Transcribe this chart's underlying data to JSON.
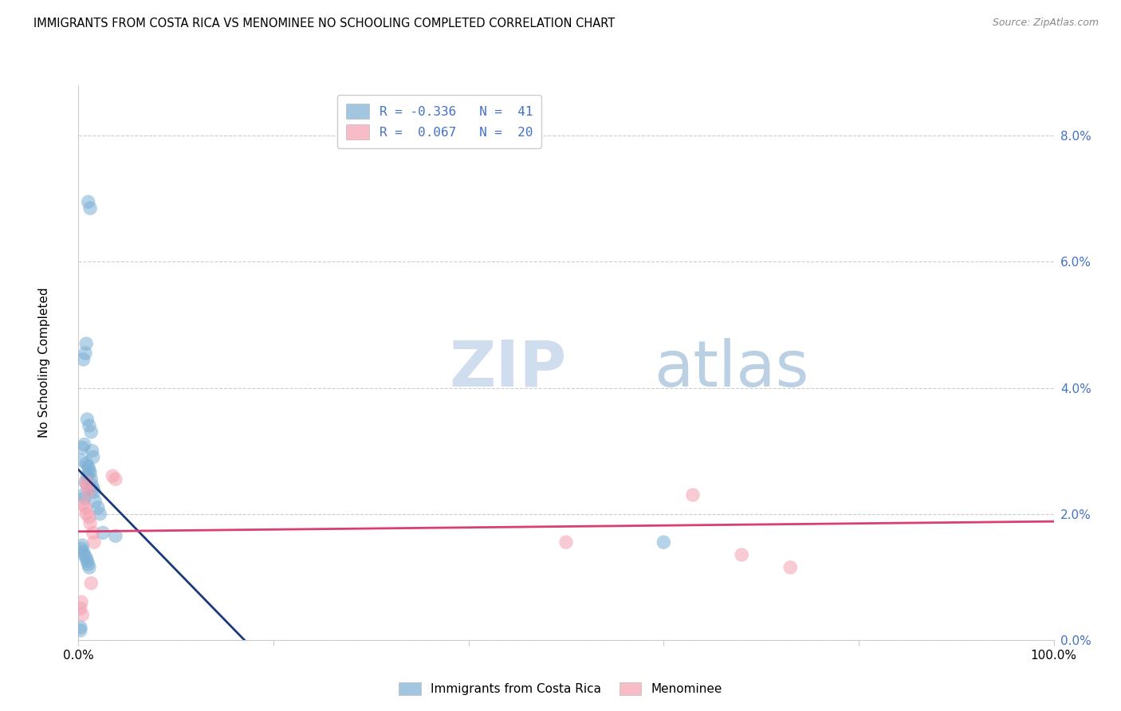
{
  "title": "IMMIGRANTS FROM COSTA RICA VS MENOMINEE NO SCHOOLING COMPLETED CORRELATION CHART",
  "source": "Source: ZipAtlas.com",
  "ylabel": "No Schooling Completed",
  "ytick_vals": [
    0.0,
    2.0,
    4.0,
    6.0,
    8.0
  ],
  "xlim": [
    0,
    100
  ],
  "ylim": [
    0.0,
    8.8
  ],
  "legend_label1": "R = -0.336   N =  41",
  "legend_label2": "R =  0.067   N =  20",
  "legend_label_bottom1": "Immigrants from Costa Rica",
  "legend_label_bottom2": "Menominee",
  "blue_scatter_x": [
    1.0,
    1.2,
    0.8,
    0.7,
    0.5,
    0.9,
    1.1,
    1.3,
    0.6,
    0.4,
    1.4,
    1.5,
    0.3,
    0.8,
    1.0,
    1.1,
    1.2,
    0.9,
    1.3,
    0.7,
    1.4,
    1.5,
    1.6,
    0.5,
    0.6,
    1.7,
    2.0,
    2.2,
    0.4,
    0.3,
    0.5,
    0.6,
    2.5,
    0.8,
    0.9,
    1.0,
    1.1,
    3.8,
    0.2,
    0.2,
    60.0
  ],
  "blue_scatter_y": [
    6.95,
    6.85,
    4.7,
    4.55,
    4.45,
    3.5,
    3.4,
    3.3,
    3.1,
    3.05,
    3.0,
    2.9,
    2.85,
    2.8,
    2.75,
    2.7,
    2.65,
    2.6,
    2.55,
    2.5,
    2.45,
    2.4,
    2.35,
    2.3,
    2.25,
    2.2,
    2.1,
    2.0,
    1.5,
    1.45,
    1.4,
    1.35,
    1.7,
    1.3,
    1.25,
    1.2,
    1.15,
    1.65,
    0.2,
    0.15,
    1.55
  ],
  "pink_scatter_x": [
    0.8,
    0.9,
    1.0,
    1.5,
    1.6,
    0.5,
    0.7,
    0.8,
    1.1,
    1.2,
    3.5,
    3.8,
    50.0,
    63.0,
    68.0,
    73.0,
    1.3,
    0.3,
    0.2,
    0.4
  ],
  "pink_scatter_y": [
    2.5,
    2.45,
    2.35,
    1.7,
    1.55,
    2.15,
    2.1,
    2.0,
    1.95,
    1.85,
    2.6,
    2.55,
    1.55,
    2.3,
    1.35,
    1.15,
    0.9,
    0.6,
    0.5,
    0.4
  ],
  "blue_line_x0": 0.0,
  "blue_line_x1": 17.0,
  "blue_line_y0": 2.7,
  "blue_line_y1": 0.0,
  "pink_line_x0": 0.0,
  "pink_line_x1": 100.0,
  "pink_line_y0": 1.72,
  "pink_line_y1": 1.88,
  "blue_color": "#7bafd4",
  "pink_color": "#f4a0b0",
  "blue_line_color": "#1a3a7a",
  "pink_line_color": "#d94070",
  "watermark_zip_color": "#c8d8ec",
  "watermark_atlas_color": "#a0bcd8",
  "tick_color": "#4472c4",
  "grid_color": "#cccccc"
}
